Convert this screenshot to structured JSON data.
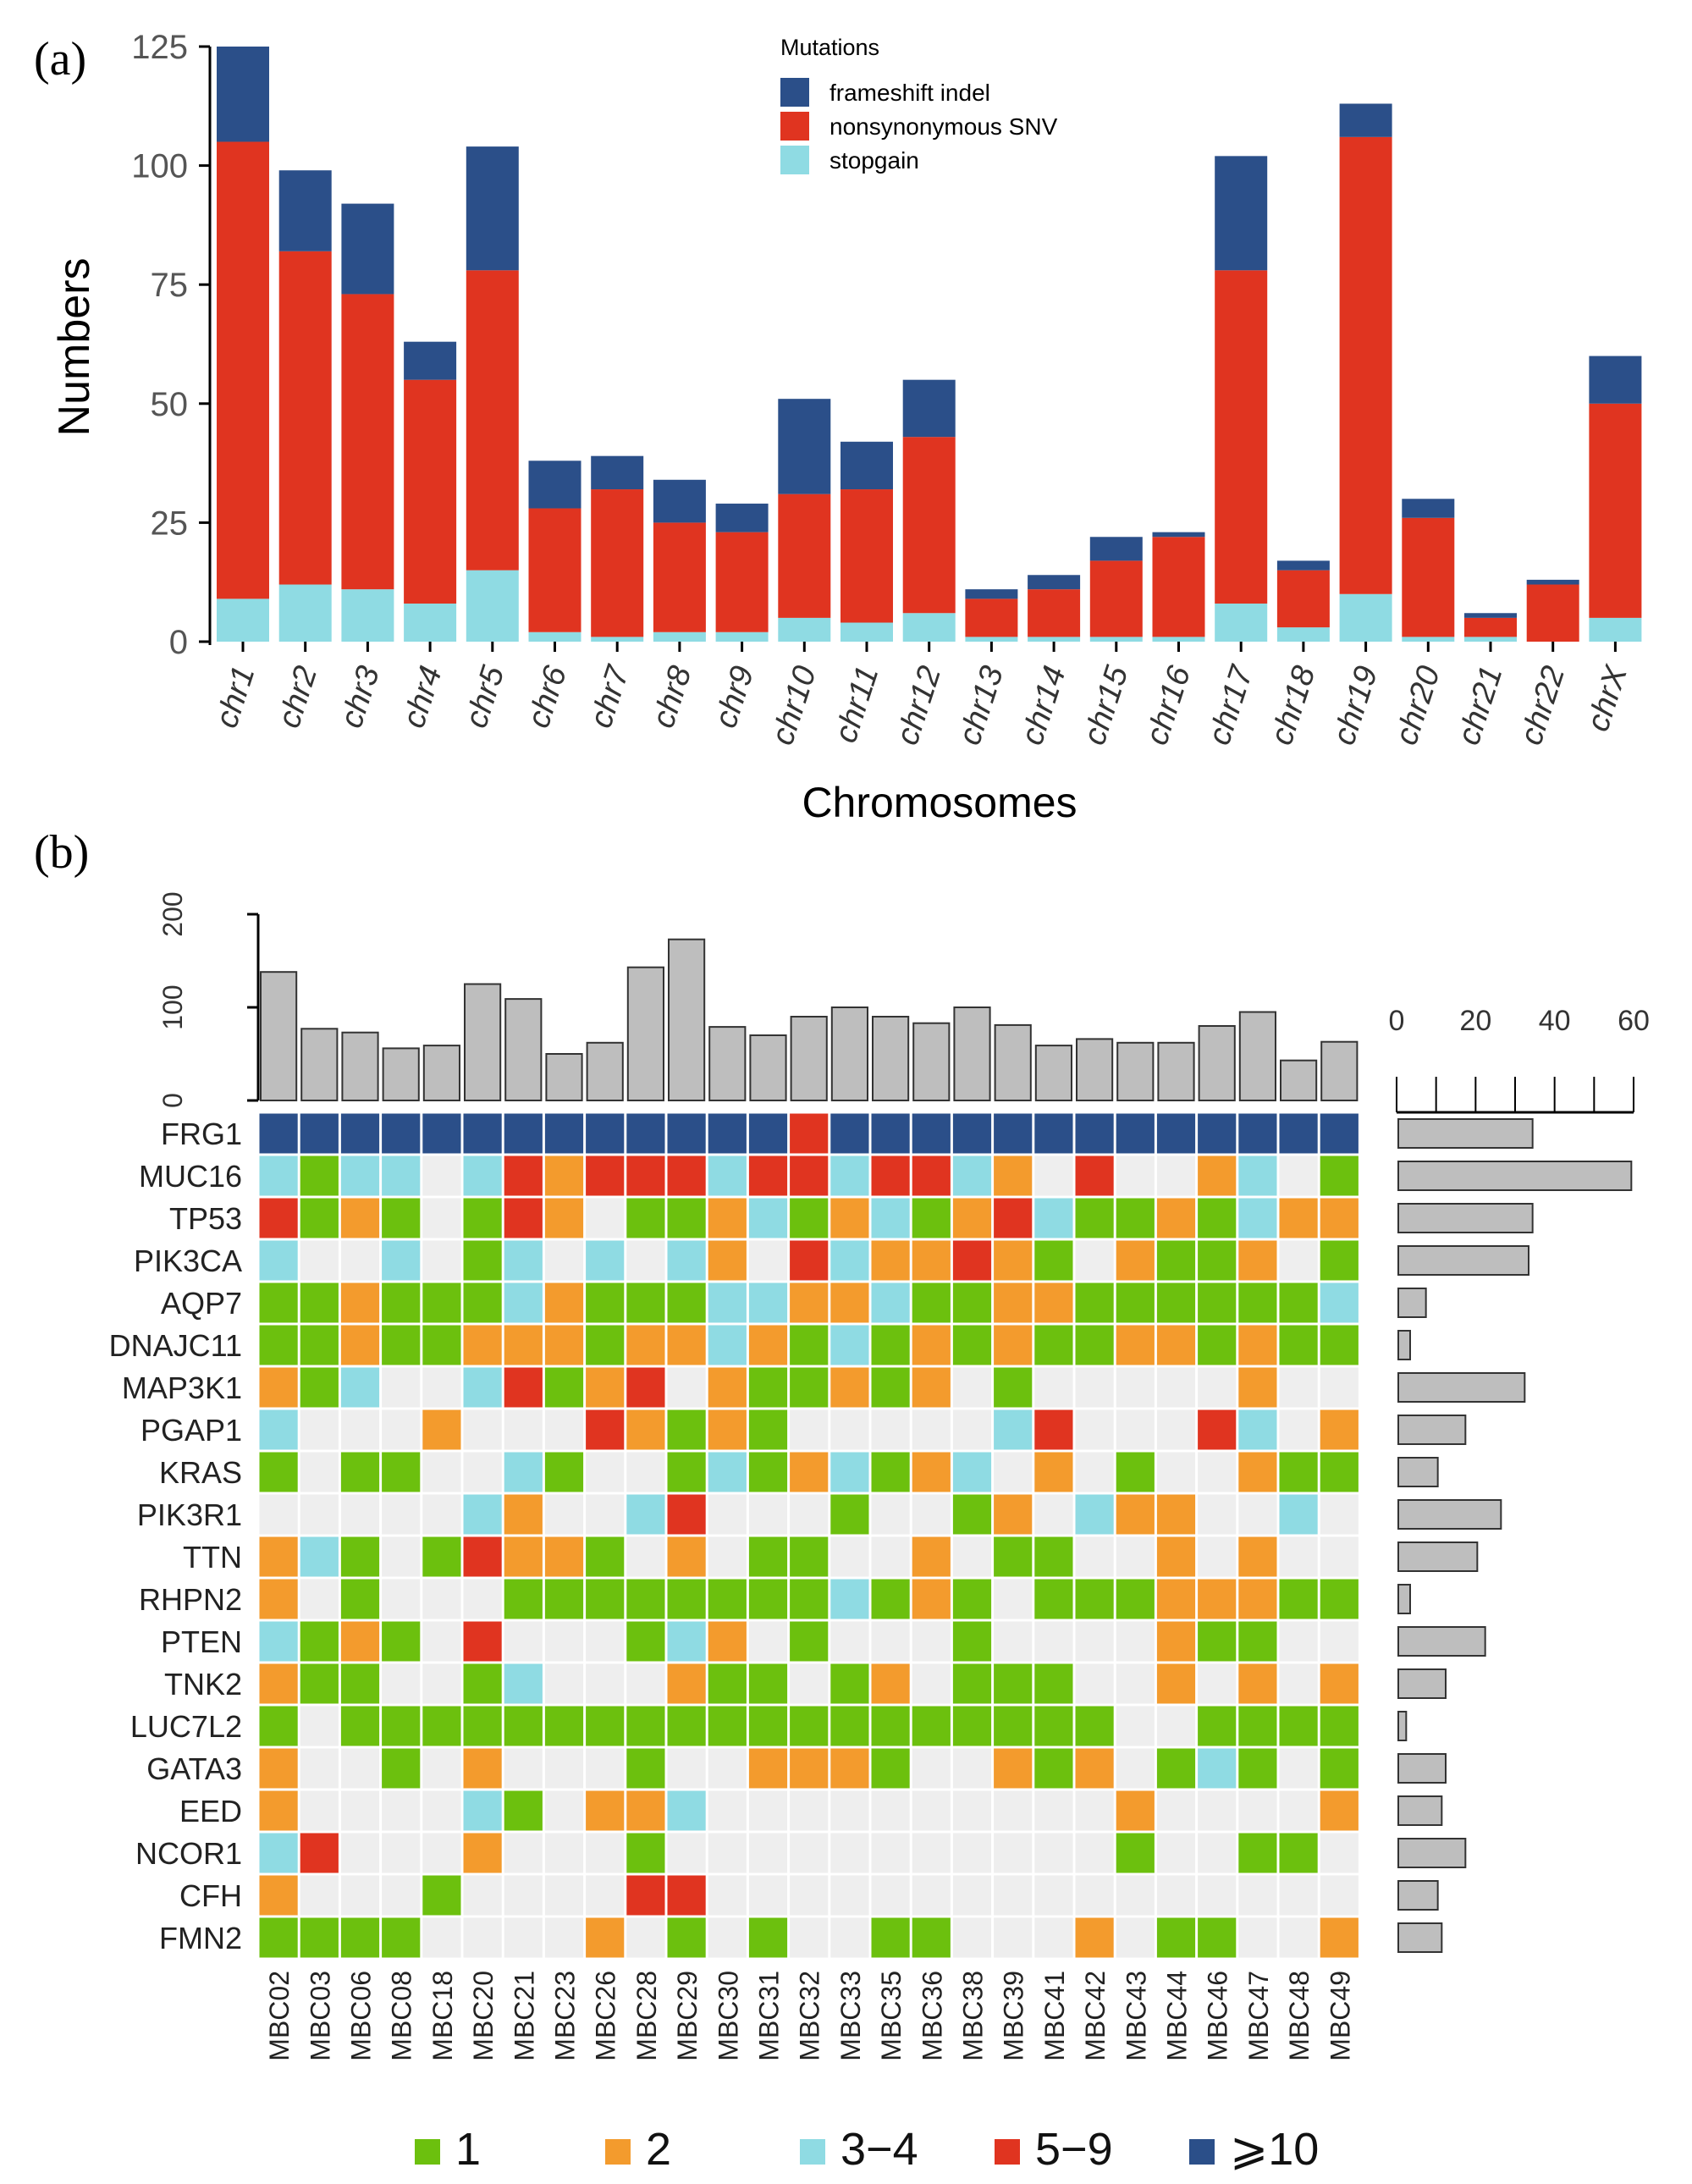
{
  "panel_labels": {
    "a": "(a)",
    "b": "(b)"
  },
  "chart_data": [
    {
      "type": "bar",
      "stacked": true,
      "title": "",
      "xlabel": "Chromosomes",
      "ylabel": "Numbers",
      "ylim": [
        0,
        125
      ],
      "yticks": [
        "0",
        "25",
        "50",
        "75",
        "100",
        "125"
      ],
      "categories": [
        "chr1",
        "chr2",
        "chr3",
        "chr4",
        "chr5",
        "chr6",
        "chr7",
        "chr8",
        "chr9",
        "chr10",
        "chr11",
        "chr12",
        "chr13",
        "chr14",
        "chr15",
        "chr16",
        "chr17",
        "chr18",
        "chr19",
        "chr20",
        "chr21",
        "chr22",
        "chrX"
      ],
      "legend": {
        "title": "Mutations",
        "placement": "top-center"
      },
      "series": [
        {
          "name": "stopgain",
          "color": "#8fdbe3",
          "values": [
            9,
            12,
            11,
            8,
            15,
            2,
            1,
            2,
            2,
            5,
            4,
            6,
            1,
            1,
            1,
            1,
            8,
            3,
            10,
            1,
            1,
            0,
            5
          ]
        },
        {
          "name": "nonsynonymous SNV",
          "color": "#e03420",
          "values": [
            96,
            70,
            62,
            47,
            63,
            26,
            31,
            23,
            21,
            26,
            28,
            37,
            8,
            10,
            16,
            21,
            70,
            12,
            96,
            25,
            4,
            12,
            45
          ]
        },
        {
          "name": "frameshift indel",
          "color": "#2b4f89",
          "values": [
            20,
            17,
            19,
            8,
            26,
            10,
            7,
            9,
            6,
            20,
            10,
            12,
            2,
            3,
            5,
            1,
            24,
            2,
            7,
            4,
            1,
            1,
            10
          ]
        }
      ]
    },
    {
      "type": "heatmap",
      "samples": [
        "MBC02",
        "MBC03",
        "MBC06",
        "MBC08",
        "MBC18",
        "MBC20",
        "MBC21",
        "MBC23",
        "MBC26",
        "MBC28",
        "MBC29",
        "MBC30",
        "MBC31",
        "MBC32",
        "MBC33",
        "MBC35",
        "MBC36",
        "MBC38",
        "MBC39",
        "MBC41",
        "MBC42",
        "MBC43",
        "MBC44",
        "MBC46",
        "MBC47",
        "MBC48",
        "MBC49"
      ],
      "genes": [
        "FRG1",
        "MUC16",
        "TP53",
        "PIK3CA",
        "AQP7",
        "DNAJC11",
        "MAP3K1",
        "PGAP1",
        "KRAS",
        "PIK3R1",
        "TTN",
        "RHPN2",
        "PTEN",
        "TNK2",
        "LUC7L2",
        "GATA3",
        "EED",
        "NCOR1",
        "CFH",
        "FMN2"
      ],
      "legend": {
        "labels": [
          "1",
          "2",
          "3−4",
          "5−9",
          "⩾10"
        ],
        "colors": [
          "#6cc00e",
          "#f39b2d",
          "#8fdbe3",
          "#e03420",
          "#2b4f89"
        ],
        "empty_color": "#eeeeee"
      },
      "matrix": [
        [
          5,
          5,
          5,
          5,
          5,
          5,
          5,
          5,
          5,
          5,
          5,
          5,
          5,
          4,
          5,
          5,
          5,
          5,
          5,
          5,
          5,
          5,
          5,
          5,
          5,
          5,
          5
        ],
        [
          3,
          1,
          3,
          3,
          0,
          3,
          4,
          2,
          4,
          4,
          4,
          3,
          4,
          4,
          3,
          4,
          4,
          3,
          2,
          0,
          4,
          0,
          0,
          2,
          3,
          0,
          1
        ],
        [
          4,
          1,
          2,
          1,
          0,
          1,
          4,
          2,
          0,
          1,
          1,
          2,
          3,
          1,
          2,
          3,
          1,
          2,
          4,
          3,
          1,
          1,
          2,
          1,
          3,
          2,
          2
        ],
        [
          3,
          0,
          0,
          3,
          0,
          1,
          3,
          0,
          3,
          0,
          3,
          2,
          0,
          4,
          3,
          2,
          2,
          4,
          2,
          1,
          0,
          2,
          1,
          1,
          2,
          0,
          1
        ],
        [
          1,
          1,
          2,
          1,
          1,
          1,
          3,
          2,
          1,
          1,
          1,
          3,
          3,
          2,
          2,
          3,
          1,
          1,
          2,
          2,
          1,
          1,
          1,
          1,
          1,
          1,
          3
        ],
        [
          1,
          1,
          2,
          1,
          1,
          2,
          2,
          2,
          1,
          2,
          2,
          3,
          2,
          1,
          3,
          1,
          2,
          1,
          2,
          1,
          1,
          2,
          2,
          1,
          2,
          1,
          1
        ],
        [
          2,
          1,
          3,
          0,
          0,
          3,
          4,
          1,
          2,
          4,
          0,
          2,
          1,
          1,
          2,
          1,
          2,
          0,
          1,
          0,
          0,
          0,
          0,
          0,
          2,
          0,
          0
        ],
        [
          3,
          0,
          0,
          0,
          2,
          0,
          0,
          0,
          4,
          2,
          1,
          2,
          1,
          0,
          0,
          0,
          0,
          0,
          3,
          4,
          0,
          0,
          0,
          4,
          3,
          0,
          2
        ],
        [
          1,
          0,
          1,
          1,
          0,
          0,
          3,
          1,
          0,
          0,
          1,
          3,
          1,
          2,
          3,
          1,
          2,
          3,
          0,
          2,
          0,
          1,
          0,
          0,
          2,
          1,
          1
        ],
        [
          0,
          0,
          0,
          0,
          0,
          3,
          2,
          0,
          0,
          3,
          4,
          0,
          0,
          0,
          1,
          0,
          0,
          1,
          2,
          0,
          3,
          2,
          2,
          0,
          0,
          3,
          0
        ],
        [
          2,
          3,
          1,
          0,
          1,
          4,
          2,
          2,
          1,
          0,
          2,
          0,
          1,
          1,
          0,
          0,
          2,
          0,
          1,
          1,
          0,
          0,
          2,
          0,
          2,
          0,
          0
        ],
        [
          2,
          0,
          1,
          0,
          0,
          0,
          1,
          1,
          1,
          1,
          1,
          1,
          1,
          1,
          3,
          1,
          2,
          1,
          0,
          1,
          1,
          1,
          2,
          2,
          2,
          1,
          1
        ],
        [
          3,
          1,
          2,
          1,
          0,
          4,
          0,
          0,
          0,
          1,
          3,
          2,
          0,
          1,
          0,
          0,
          0,
          1,
          0,
          0,
          0,
          0,
          2,
          1,
          1,
          0,
          0
        ],
        [
          2,
          1,
          1,
          0,
          0,
          1,
          3,
          0,
          0,
          0,
          2,
          1,
          1,
          0,
          1,
          2,
          0,
          1,
          1,
          1,
          0,
          0,
          2,
          0,
          2,
          0,
          2
        ],
        [
          1,
          0,
          1,
          1,
          1,
          1,
          1,
          1,
          1,
          1,
          1,
          1,
          1,
          1,
          1,
          1,
          1,
          1,
          1,
          1,
          1,
          0,
          0,
          1,
          1,
          1,
          1
        ],
        [
          2,
          0,
          0,
          1,
          0,
          2,
          0,
          0,
          0,
          1,
          0,
          0,
          2,
          2,
          2,
          1,
          0,
          0,
          2,
          1,
          2,
          0,
          1,
          3,
          1,
          0,
          1
        ],
        [
          2,
          0,
          0,
          0,
          0,
          3,
          1,
          0,
          2,
          2,
          3,
          0,
          0,
          0,
          0,
          0,
          0,
          0,
          0,
          0,
          0,
          2,
          0,
          0,
          0,
          0,
          2
        ],
        [
          3,
          4,
          0,
          0,
          0,
          2,
          0,
          0,
          0,
          1,
          0,
          0,
          0,
          0,
          0,
          0,
          0,
          0,
          0,
          0,
          0,
          1,
          0,
          0,
          1,
          1,
          0
        ],
        [
          2,
          0,
          0,
          0,
          1,
          0,
          0,
          0,
          0,
          4,
          4,
          0,
          0,
          0,
          0,
          0,
          0,
          0,
          0,
          0,
          0,
          0,
          0,
          0,
          0,
          0,
          0
        ],
        [
          1,
          1,
          1,
          1,
          0,
          0,
          0,
          0,
          2,
          0,
          1,
          0,
          1,
          0,
          0,
          1,
          1,
          0,
          0,
          0,
          2,
          0,
          1,
          1,
          0,
          0,
          2
        ]
      ],
      "top_bars": {
        "ylim": [
          0,
          200
        ],
        "ticks": [
          "0",
          "100",
          "200"
        ],
        "values": [
          138,
          77,
          73,
          56,
          59,
          125,
          109,
          50,
          62,
          143,
          173,
          79,
          70,
          90,
          100,
          90,
          83,
          100,
          81,
          59,
          66,
          62,
          62,
          80,
          95,
          43,
          63
        ]
      },
      "right_bars": {
        "xlim": [
          0,
          60
        ],
        "ticks": [
          "0",
          "20",
          "40",
          "60"
        ],
        "values": [
          34,
          59,
          34,
          33,
          7,
          3,
          32,
          17,
          10,
          26,
          20,
          3,
          22,
          12,
          2,
          12,
          11,
          17,
          10,
          11
        ]
      }
    }
  ]
}
